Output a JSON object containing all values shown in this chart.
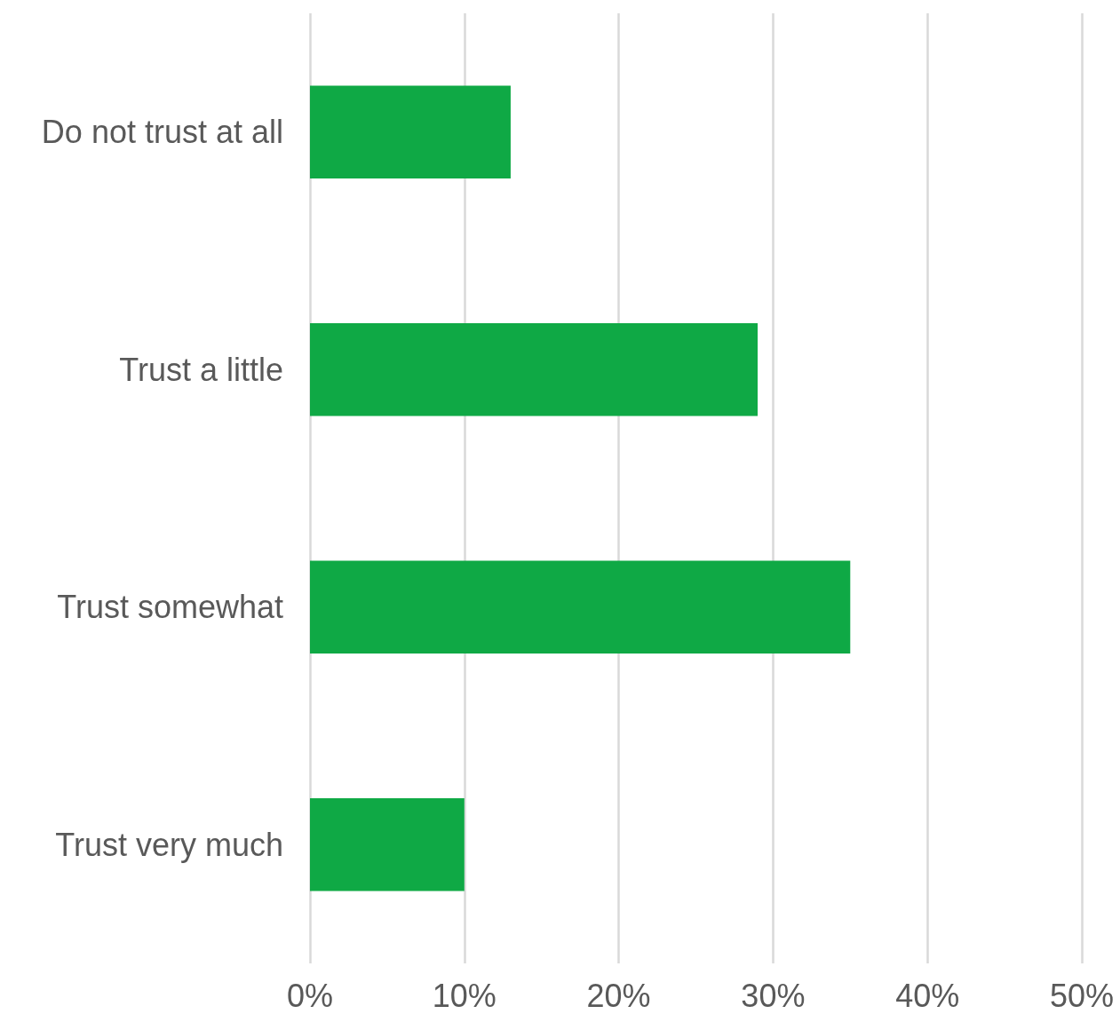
{
  "chart_data": {
    "type": "bar",
    "orientation": "horizontal",
    "categories": [
      "Do not trust at all",
      "Trust a little",
      "Trust somewhat",
      "Trust very much"
    ],
    "values": [
      13,
      29,
      35,
      10
    ],
    "color": "#0fa945",
    "xlim": [
      0,
      50
    ],
    "xticks": [
      {
        "value": 0,
        "label": "0%"
      },
      {
        "value": 10,
        "label": "10%"
      },
      {
        "value": 20,
        "label": "20%"
      },
      {
        "value": 30,
        "label": "30%"
      },
      {
        "value": 40,
        "label": "40%"
      },
      {
        "value": 50,
        "label": "50%"
      }
    ],
    "grid": "x"
  }
}
